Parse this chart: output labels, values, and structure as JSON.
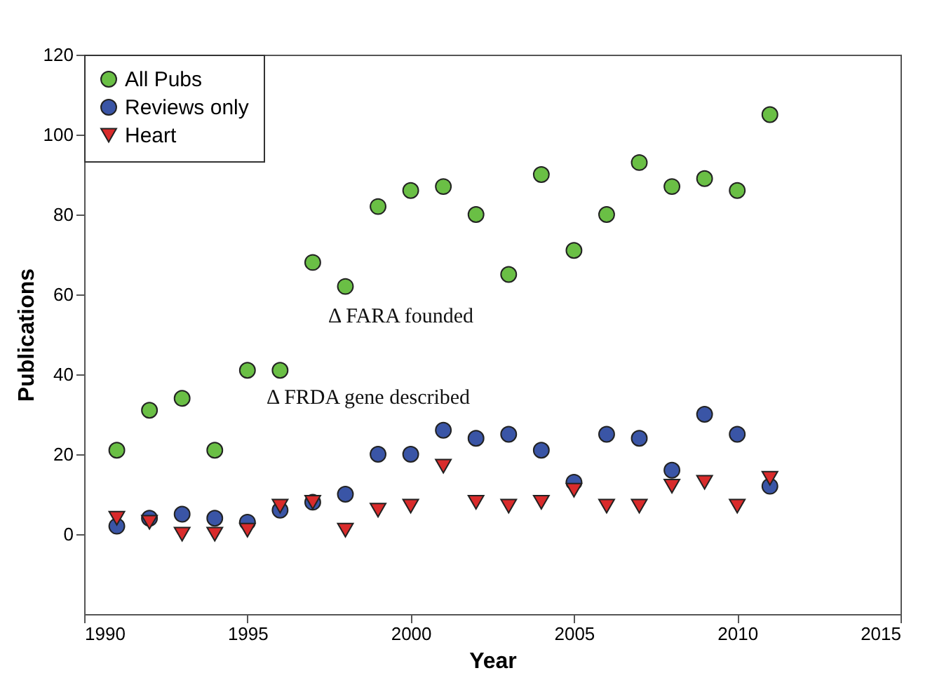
{
  "chart_data": {
    "type": "scatter",
    "xlabel": "Year",
    "ylabel": "Publications",
    "x": [
      1991,
      1992,
      1993,
      1994,
      1995,
      1996,
      1997,
      1998,
      1999,
      2000,
      2001,
      2002,
      2003,
      2004,
      2005,
      2006,
      2007,
      2008,
      2009,
      2010,
      2011
    ],
    "series": [
      {
        "name": "All Pubs",
        "color": "#6abf45",
        "marker": "circle",
        "values": [
          21,
          31,
          34,
          21,
          41,
          41,
          68,
          62,
          82,
          86,
          87,
          80,
          65,
          90,
          71,
          80,
          93,
          87,
          89,
          86,
          105
        ]
      },
      {
        "name": "Reviews only",
        "color": "#3a55a6",
        "marker": "circle",
        "values": [
          2,
          4,
          5,
          4,
          3,
          6,
          8,
          10,
          20,
          20,
          26,
          24,
          25,
          21,
          13,
          25,
          24,
          16,
          30,
          25,
          12
        ]
      },
      {
        "name": "Heart",
        "color": "#d92b2b",
        "marker": "triangle",
        "values": [
          4,
          3,
          0,
          0,
          1,
          7,
          8,
          1,
          6,
          7,
          17,
          8,
          7,
          8,
          11,
          7,
          7,
          12,
          13,
          7,
          14
        ]
      }
    ],
    "xlim": [
      1990,
      2015
    ],
    "xticks": [
      1990,
      1995,
      2000,
      2005,
      2010,
      2015
    ],
    "ylim": [
      -20,
      120
    ],
    "yticks": [
      0,
      20,
      40,
      60,
      80,
      100,
      120
    ],
    "annotations": [
      "Δ FARA founded",
      "Δ FRDA gene described"
    ],
    "legend": "top left",
    "grid": false
  }
}
